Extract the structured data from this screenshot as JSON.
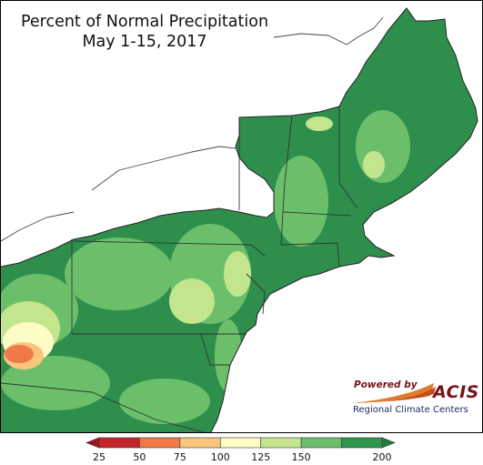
{
  "title": {
    "line1": "Percent of Normal Precipitation",
    "line2": "May 1-15, 2017"
  },
  "logo": {
    "powered_by": "Powered by",
    "name": "ACIS",
    "subtitle": "Regional Climate Centers"
  },
  "legend": {
    "ticks": [
      "25",
      "50",
      "75",
      "100",
      "125",
      "150",
      "200"
    ],
    "bins": [
      {
        "color": "#c3242a"
      },
      {
        "color": "#f07a47"
      },
      {
        "color": "#fbc57e"
      },
      {
        "color": "#fefcc6"
      },
      {
        "color": "#c3e58d"
      },
      {
        "color": "#6cbf6a"
      },
      {
        "color": "#2e964c"
      }
    ],
    "below_color": "#9e1418",
    "above_color": "#1f7d3e"
  },
  "colors": {
    "land_base": "#2e8f4d",
    "water": "#ffffff",
    "border": "#333333"
  }
}
